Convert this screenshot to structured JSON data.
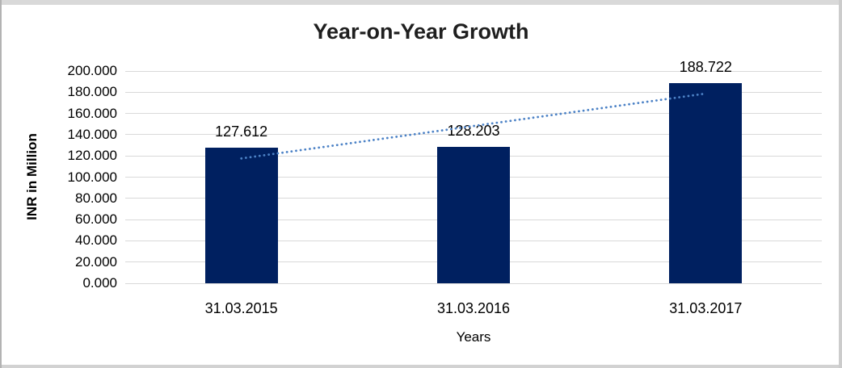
{
  "frame": {
    "background": "#ffffff",
    "border_top_color": "#d9d9d9",
    "border_side_color": "#c9c9c9"
  },
  "chart_data": {
    "type": "bar",
    "title": "Year-on-Year Growth",
    "xlabel": "Years",
    "ylabel": "INR in Million",
    "categories": [
      "31.03.2015",
      "31.03.2016",
      "31.03.2017"
    ],
    "series": [
      {
        "name": "INR in Million",
        "values": [
          127.612,
          128.203,
          188.722
        ],
        "data_labels": [
          "127.612",
          "128.203",
          "188.722"
        ],
        "bar_color": "#002060"
      }
    ],
    "trendline": {
      "type": "linear",
      "style": "dotted",
      "color": "#4c82c6"
    },
    "ylim": [
      0,
      200
    ],
    "ytick_step": 20,
    "ytick_labels": [
      "0.000",
      "20.000",
      "40.000",
      "60.000",
      "80.000",
      "100.000",
      "120.000",
      "140.000",
      "160.000",
      "180.000",
      "200.000"
    ],
    "grid": true,
    "gridline_color": "#d9d9d9",
    "legend_position": "none",
    "title_color": "#1f1f1f"
  }
}
